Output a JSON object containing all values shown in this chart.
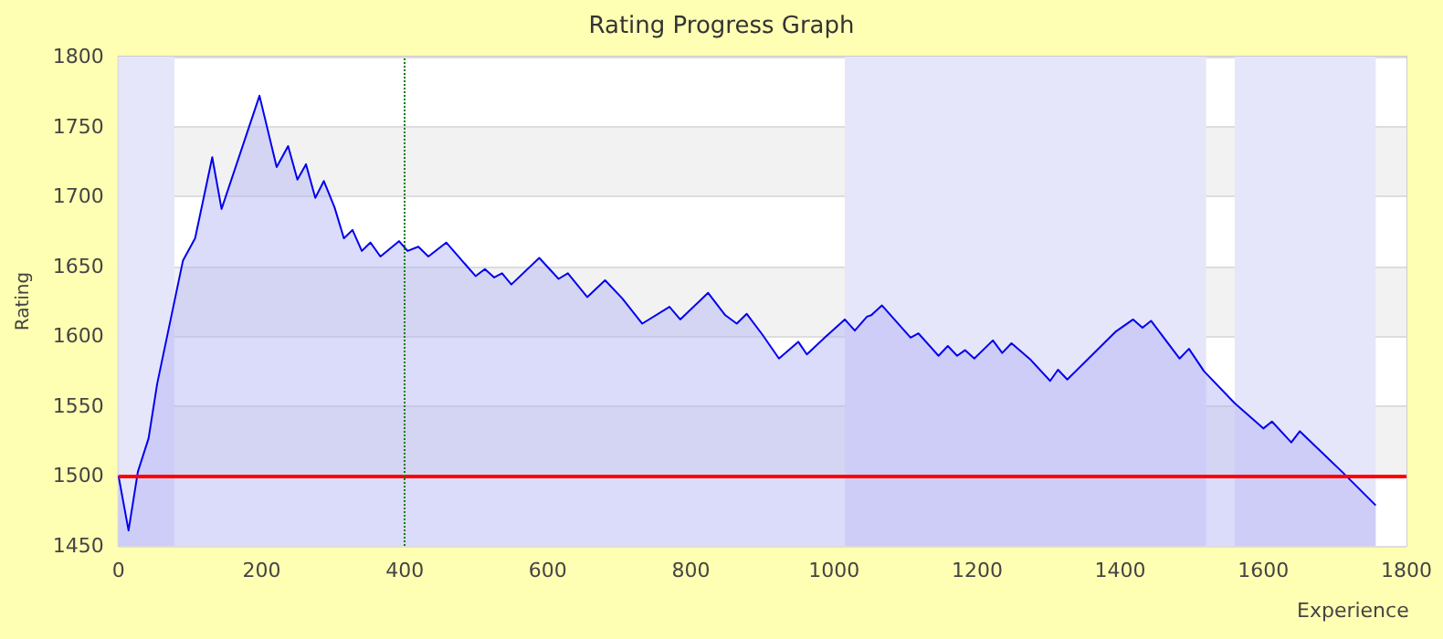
{
  "chart_data": {
    "type": "area",
    "title": "Rating Progress Graph",
    "xlabel": "Experience",
    "ylabel": "Rating",
    "x": [
      0,
      14,
      27,
      42,
      54,
      90,
      107,
      131,
      144,
      197,
      221,
      237,
      250,
      262,
      275,
      287,
      302,
      315,
      327,
      340,
      352,
      366,
      392,
      404,
      419,
      433,
      458,
      499,
      512,
      525,
      536,
      549,
      588,
      615,
      628,
      655,
      680,
      704,
      732,
      770,
      785,
      824,
      848,
      864,
      878,
      900,
      923,
      950,
      962,
      987,
      1015,
      1029,
      1046,
      1052,
      1067,
      1107,
      1118,
      1146,
      1159,
      1172,
      1183,
      1196,
      1222,
      1235,
      1248,
      1275,
      1302,
      1313,
      1326,
      1393,
      1418,
      1431,
      1443,
      1483,
      1496,
      1517,
      1560,
      1600,
      1612,
      1639,
      1651,
      1712,
      1757
    ],
    "series": [
      {
        "color": "#0000ee",
        "values": [
          1500,
          1461,
          1503,
          1527,
          1566,
          1654,
          1670,
          1728,
          1691,
          1772,
          1721,
          1736,
          1712,
          1723,
          1699,
          1711,
          1692,
          1670,
          1676,
          1661,
          1667,
          1657,
          1668,
          1661,
          1664,
          1657,
          1667,
          1643,
          1648,
          1642,
          1645,
          1637,
          1656,
          1641,
          1645,
          1628,
          1640,
          1627,
          1609,
          1621,
          1612,
          1631,
          1615,
          1609,
          1616,
          1601,
          1584,
          1596,
          1587,
          1599,
          1612,
          1604,
          1614,
          1615,
          1622,
          1599,
          1602,
          1586,
          1593,
          1586,
          1590,
          1584,
          1597,
          1588,
          1595,
          1583,
          1568,
          1576,
          1569,
          1603,
          1612,
          1606,
          1611,
          1584,
          1591,
          1575,
          1552,
          1534,
          1539,
          1524,
          1532,
          1502,
          1479
        ]
      }
    ],
    "xlim": [
      0,
      1800
    ],
    "xticks": [
      0,
      200,
      400,
      600,
      800,
      1000,
      1200,
      1400,
      1600,
      1800
    ],
    "ylim": [
      1450,
      1800
    ],
    "yticks": [
      1450,
      1500,
      1550,
      1600,
      1650,
      1700,
      1750,
      1800
    ],
    "grid": "y",
    "marker": "none",
    "line_style": "solid",
    "ref_lines": [
      {
        "axis": "y",
        "value": 1500,
        "color": "#ff0000",
        "line_style": "solid"
      },
      {
        "axis": "x",
        "value": 400,
        "color": "#008000",
        "line_style": "dotted"
      }
    ],
    "bands": [
      {
        "axis": "x",
        "from": 0,
        "to": 78,
        "color": "#e6e6fa"
      },
      {
        "axis": "x",
        "from": 1015,
        "to": 1520,
        "color": "#e6e6fa"
      },
      {
        "axis": "x",
        "from": 1560,
        "to": 1757,
        "color": "#e6e6fa"
      }
    ]
  }
}
